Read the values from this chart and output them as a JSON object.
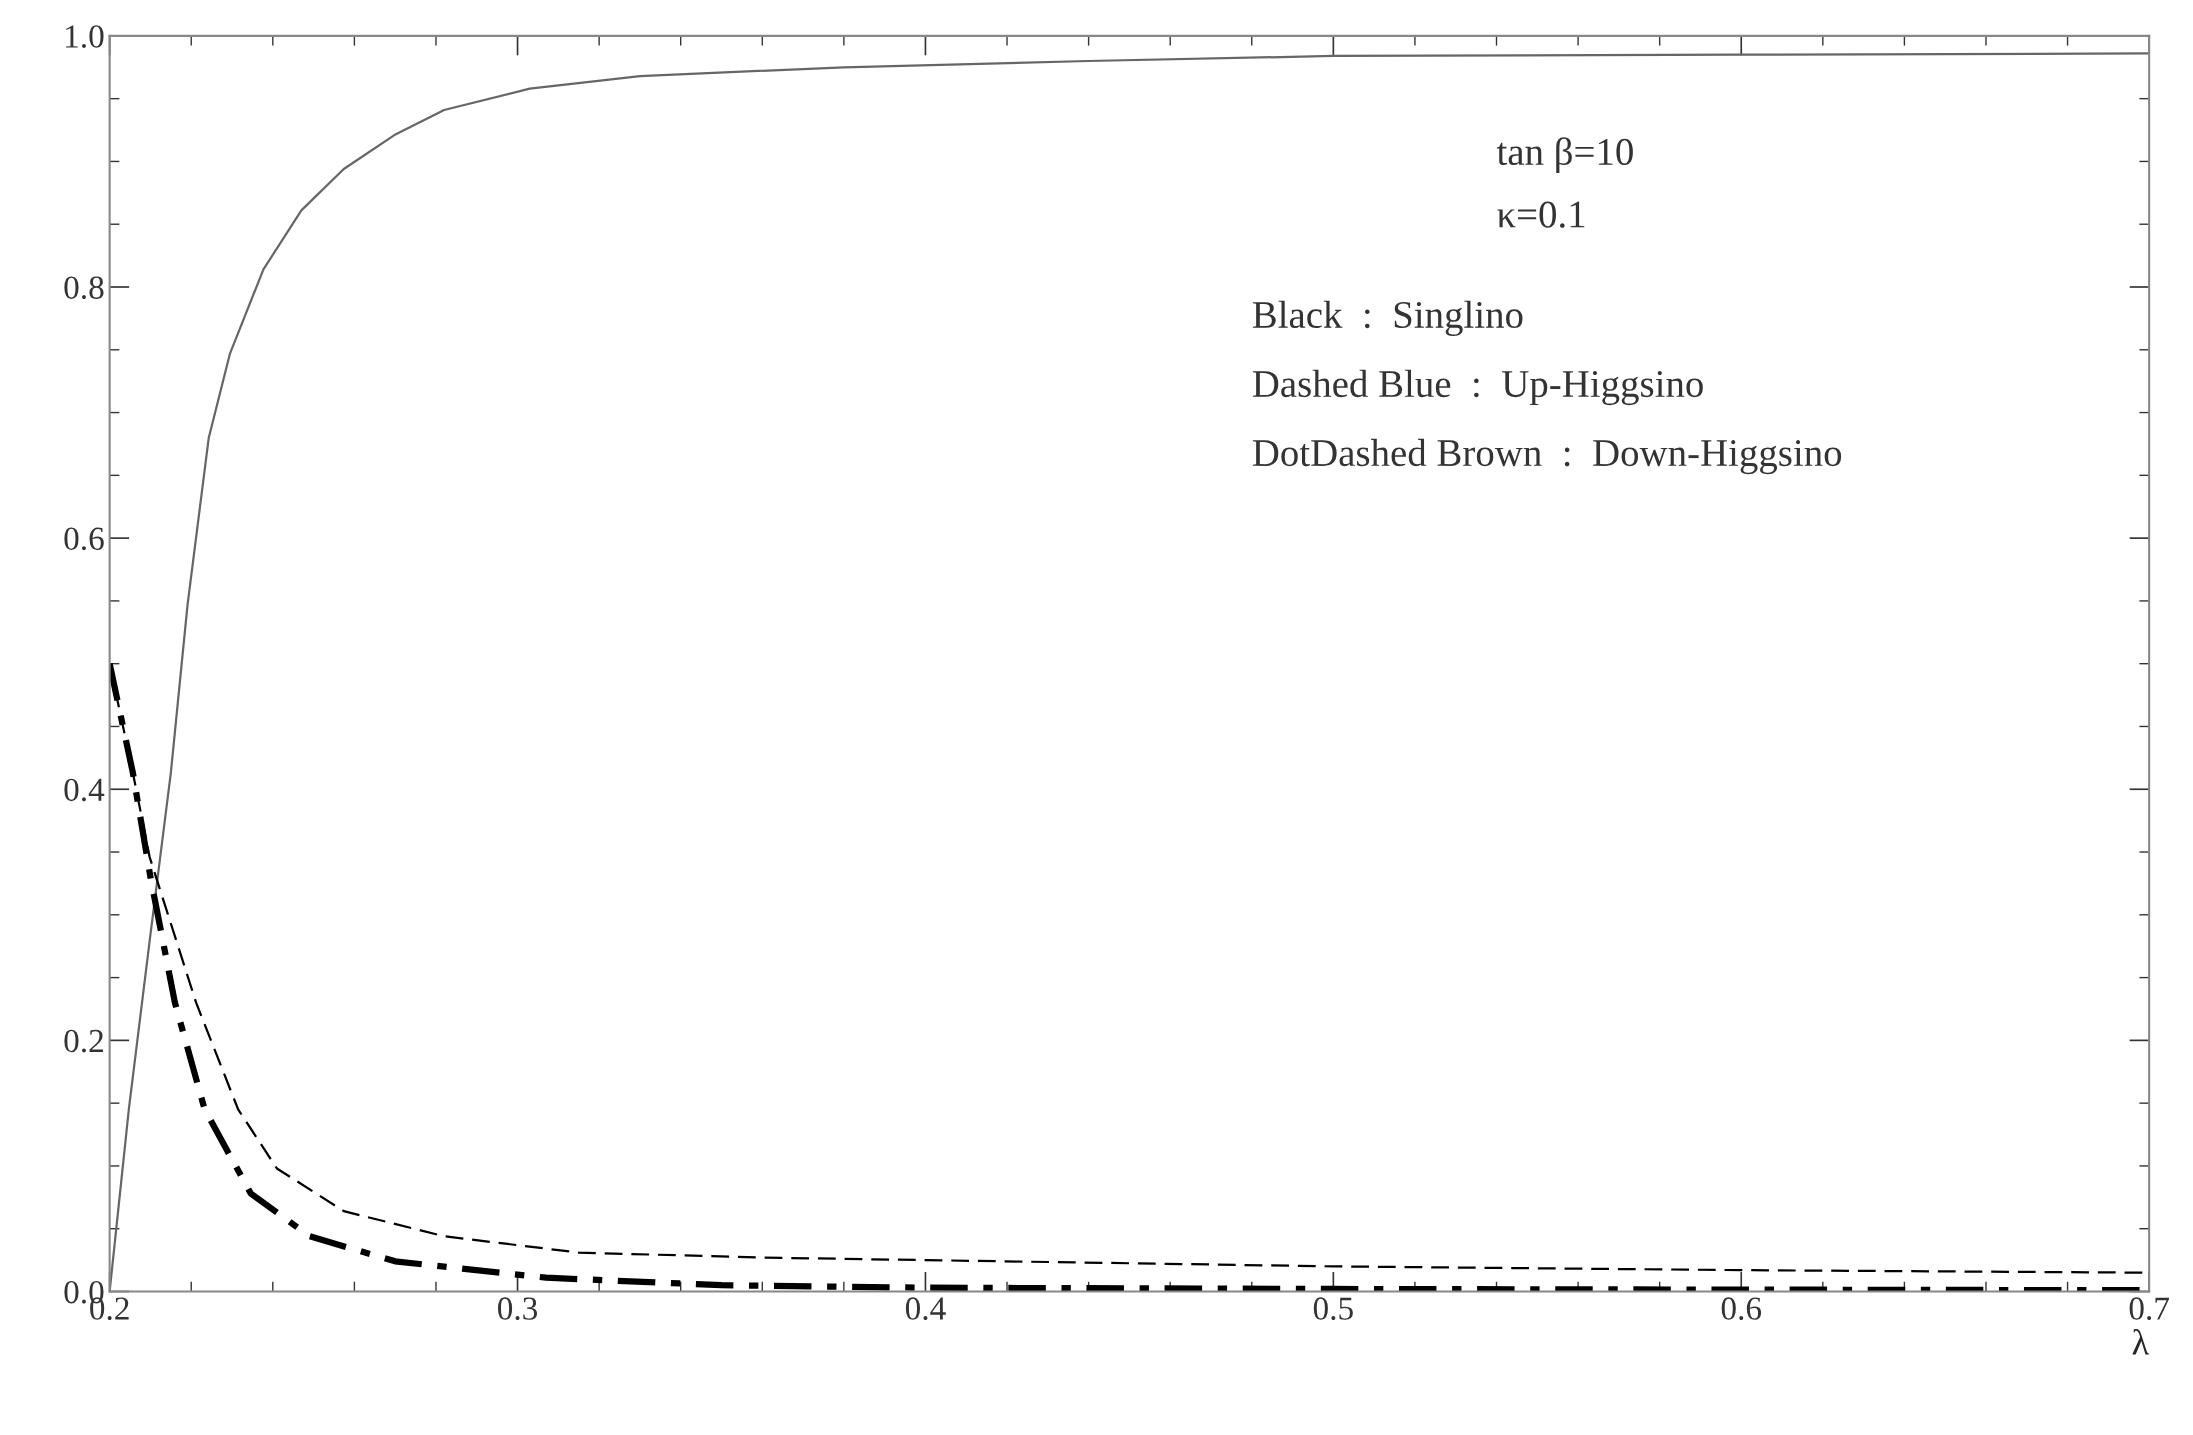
{
  "chart_data": {
    "type": "line",
    "xlabel": "λ",
    "xlim": [
      0.2,
      0.7
    ],
    "xticks": [
      0.2,
      0.3,
      0.4,
      0.5,
      0.6,
      0.7
    ],
    "ylim": [
      0.0,
      1.0
    ],
    "yticks": [
      {
        "value": 0.0,
        "label": "0.0"
      },
      0.2,
      0.4,
      0.6,
      0.8,
      {
        "value": 1.0,
        "label": "1.0"
      }
    ],
    "grid": false,
    "legend": false,
    "marker": "none",
    "annotations": [
      "tan β=10",
      "κ=0.1",
      "Black  :  Singlino",
      "Dashed Blue  :  Up-Higgsino",
      "DotDashed Brown  :  Down-Higgsino"
    ],
    "series": [
      {
        "color": "#666666",
        "line_style": "solid",
        "x": [
          0.2,
          0.2047,
          0.2098,
          0.215,
          0.2191,
          0.2243,
          0.2295,
          0.2377,
          0.247,
          0.2574,
          0.2698,
          0.282,
          0.303,
          0.33,
          0.38,
          0.44,
          0.5,
          0.6,
          0.7
        ],
        "values": [
          0.0,
          0.145,
          0.279,
          0.413,
          0.547,
          0.68,
          0.747,
          0.814,
          0.861,
          0.894,
          0.921,
          0.941,
          0.958,
          0.968,
          0.975,
          0.98,
          0.984,
          0.985,
          0.986
        ]
      },
      {
        "color": "#000000",
        "line_style": "dashed",
        "x": [
          0.2,
          0.2057,
          0.2098,
          0.2212,
          0.2315,
          0.241,
          0.2574,
          0.282,
          0.315,
          0.36,
          0.4,
          0.5,
          0.6,
          0.7
        ],
        "values": [
          0.5,
          0.413,
          0.346,
          0.23,
          0.145,
          0.098,
          0.064,
          0.044,
          0.031,
          0.027,
          0.025,
          0.02,
          0.017,
          0.015
        ]
      },
      {
        "color": "#000000",
        "line_style": "dashdot",
        "x": [
          0.2,
          0.2057,
          0.21,
          0.216,
          0.2233,
          0.2346,
          0.249,
          0.27,
          0.307,
          0.35,
          0.4,
          0.5,
          0.6,
          0.7
        ],
        "values": [
          0.5,
          0.413,
          0.33,
          0.23,
          0.145,
          0.078,
          0.044,
          0.024,
          0.011,
          0.005,
          0.003,
          0.002,
          0.0015,
          0.001
        ]
      }
    ]
  }
}
